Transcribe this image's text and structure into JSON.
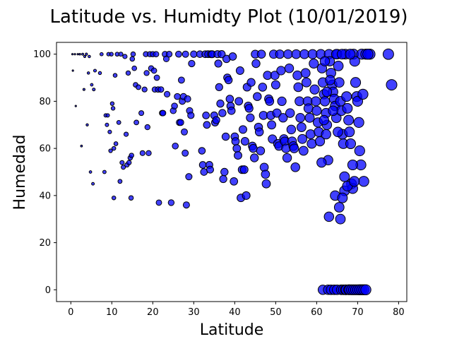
{
  "chart_data": {
    "type": "scatter",
    "title": "Latitude vs. Humidty Plot (10/01/2019)",
    "xlabel": "Latitude",
    "ylabel": "Humedad",
    "xlim": [
      -3.5,
      82
    ],
    "ylim": [
      -5,
      105
    ],
    "xticks": [
      0,
      10,
      20,
      30,
      40,
      50,
      60,
      70,
      80
    ],
    "yticks": [
      0,
      20,
      40,
      60,
      80,
      100
    ],
    "grid": false,
    "marker_color": "#0000ff",
    "marker_edge_color": "#000000",
    "marker_alpha": 0.75,
    "marker_size_encodes": "Latitude",
    "points": [
      [
        0.4,
        100
      ],
      [
        0.5,
        93
      ],
      [
        1.0,
        100
      ],
      [
        1.2,
        78
      ],
      [
        1.7,
        100
      ],
      [
        2.2,
        100
      ],
      [
        2.6,
        61
      ],
      [
        2.9,
        100
      ],
      [
        3.2,
        85
      ],
      [
        3.4,
        99
      ],
      [
        3.8,
        100
      ],
      [
        4.0,
        70
      ],
      [
        4.3,
        92
      ],
      [
        4.5,
        99
      ],
      [
        4.8,
        50
      ],
      [
        5.1,
        87
      ],
      [
        5.4,
        45
      ],
      [
        5.6,
        85
      ],
      [
        5.9,
        93
      ],
      [
        7.1,
        92
      ],
      [
        7.5,
        100
      ],
      [
        8.2,
        50
      ],
      [
        8.5,
        74
      ],
      [
        8.8,
        70
      ],
      [
        9.0,
        74
      ],
      [
        9.2,
        100
      ],
      [
        9.5,
        67
      ],
      [
        9.7,
        59
      ],
      [
        9.9,
        100
      ],
      [
        10.1,
        79
      ],
      [
        10.3,
        77
      ],
      [
        10.5,
        60
      ],
      [
        10.5,
        39
      ],
      [
        10.8,
        91
      ],
      [
        11.0,
        62
      ],
      [
        11.3,
        100
      ],
      [
        11.7,
        71
      ],
      [
        12.0,
        46
      ],
      [
        12.2,
        100
      ],
      [
        12.5,
        54
      ],
      [
        12.8,
        52
      ],
      [
        13.2,
        99
      ],
      [
        13.5,
        66
      ],
      [
        13.7,
        53
      ],
      [
        14.0,
        92
      ],
      [
        14.2,
        54
      ],
      [
        14.5,
        56
      ],
      [
        14.7,
        39
      ],
      [
        14.8,
        57
      ],
      [
        15.0,
        98
      ],
      [
        15.2,
        100
      ],
      [
        15.5,
        94
      ],
      [
        15.8,
        87
      ],
      [
        16.0,
        71
      ],
      [
        16.5,
        86
      ],
      [
        17.2,
        75
      ],
      [
        17.5,
        58
      ],
      [
        18.0,
        85
      ],
      [
        18.3,
        100
      ],
      [
        18.5,
        92
      ],
      [
        18.7,
        69
      ],
      [
        19.0,
        58
      ],
      [
        19.3,
        100
      ],
      [
        19.6,
        94
      ],
      [
        20.0,
        100
      ],
      [
        20.3,
        93
      ],
      [
        20.5,
        85
      ],
      [
        20.8,
        100
      ],
      [
        21.0,
        90
      ],
      [
        21.3,
        85
      ],
      [
        21.5,
        37
      ],
      [
        22.0,
        85
      ],
      [
        22.3,
        75
      ],
      [
        22.5,
        75
      ],
      [
        23.0,
        100
      ],
      [
        23.3,
        98
      ],
      [
        23.5,
        83
      ],
      [
        24.0,
        100
      ],
      [
        24.5,
        37
      ],
      [
        25.0,
        76
      ],
      [
        25.3,
        78
      ],
      [
        25.5,
        61
      ],
      [
        26.0,
        82
      ],
      [
        26.3,
        100
      ],
      [
        26.5,
        71
      ],
      [
        26.8,
        71
      ],
      [
        27.0,
        89
      ],
      [
        27.2,
        80
      ],
      [
        27.5,
        82
      ],
      [
        27.7,
        67
      ],
      [
        27.9,
        58
      ],
      [
        28.0,
        100
      ],
      [
        28.2,
        36
      ],
      [
        28.5,
        81
      ],
      [
        28.8,
        48
      ],
      [
        29.0,
        76
      ],
      [
        29.3,
        74
      ],
      [
        29.5,
        96
      ],
      [
        30.0,
        100
      ],
      [
        31.5,
        100
      ],
      [
        32.0,
        59
      ],
      [
        32.2,
        53
      ],
      [
        32.5,
        50
      ],
      [
        32.8,
        100
      ],
      [
        33.0,
        74
      ],
      [
        33.2,
        70
      ],
      [
        33.5,
        100
      ],
      [
        33.8,
        53
      ],
      [
        34.0,
        51
      ],
      [
        34.2,
        100
      ],
      [
        34.5,
        100
      ],
      [
        35.0,
        74
      ],
      [
        35.2,
        71
      ],
      [
        35.5,
        72
      ],
      [
        35.8,
        100
      ],
      [
        36.0,
        96
      ],
      [
        36.2,
        86
      ],
      [
        36.5,
        79
      ],
      [
        36.8,
        100
      ],
      [
        37.0,
        75
      ],
      [
        37.2,
        47
      ],
      [
        37.5,
        50
      ],
      [
        37.8,
        65
      ],
      [
        38.0,
        98
      ],
      [
        38.2,
        90
      ],
      [
        38.5,
        89
      ],
      [
        38.8,
        81
      ],
      [
        39.0,
        78
      ],
      [
        39.2,
        76
      ],
      [
        39.5,
        99
      ],
      [
        39.8,
        46
      ],
      [
        40.0,
        65
      ],
      [
        40.2,
        63
      ],
      [
        40.5,
        60
      ],
      [
        40.8,
        57
      ],
      [
        41.0,
        80
      ],
      [
        41.3,
        93
      ],
      [
        41.5,
        39
      ],
      [
        41.8,
        51
      ],
      [
        42.0,
        68
      ],
      [
        42.3,
        51
      ],
      [
        42.5,
        63
      ],
      [
        42.8,
        40
      ],
      [
        43.0,
        86
      ],
      [
        43.3,
        78
      ],
      [
        43.5,
        77
      ],
      [
        43.8,
        73
      ],
      [
        44.0,
        88
      ],
      [
        44.3,
        61
      ],
      [
        44.5,
        60
      ],
      [
        44.8,
        56
      ],
      [
        45.0,
        100
      ],
      [
        45.2,
        96
      ],
      [
        45.5,
        82
      ],
      [
        45.8,
        69
      ],
      [
        46.0,
        67
      ],
      [
        46.3,
        59
      ],
      [
        46.5,
        100
      ],
      [
        46.8,
        86
      ],
      [
        47.0,
        74
      ],
      [
        47.2,
        52
      ],
      [
        47.5,
        49
      ],
      [
        47.7,
        45
      ],
      [
        48.0,
        91
      ],
      [
        48.3,
        81
      ],
      [
        48.5,
        80
      ],
      [
        48.8,
        74
      ],
      [
        49.0,
        70
      ],
      [
        49.2,
        64
      ],
      [
        49.5,
        100
      ],
      [
        49.8,
        91
      ],
      [
        50.0,
        87
      ],
      [
        50.3,
        75
      ],
      [
        50.5,
        62
      ],
      [
        50.8,
        61
      ],
      [
        51.0,
        100
      ],
      [
        51.3,
        93
      ],
      [
        51.5,
        80
      ],
      [
        51.8,
        73
      ],
      [
        52.0,
        64
      ],
      [
        52.2,
        63
      ],
      [
        52.5,
        60
      ],
      [
        52.8,
        56
      ],
      [
        53.0,
        100
      ],
      [
        53.3,
        94
      ],
      [
        53.5,
        75
      ],
      [
        53.8,
        68
      ],
      [
        54.0,
        63
      ],
      [
        54.3,
        61
      ],
      [
        54.5,
        60
      ],
      [
        54.8,
        52
      ],
      [
        55.0,
        100
      ],
      [
        55.3,
        91
      ],
      [
        55.5,
        86
      ],
      [
        55.8,
        80
      ],
      [
        56.0,
        73
      ],
      [
        56.3,
        69
      ],
      [
        56.5,
        64
      ],
      [
        56.8,
        59
      ],
      [
        57.0,
        100
      ],
      [
        57.3,
        92
      ],
      [
        57.5,
        88
      ],
      [
        57.8,
        80
      ],
      [
        58.0,
        77
      ],
      [
        58.3,
        73
      ],
      [
        58.5,
        66
      ],
      [
        58.8,
        62
      ],
      [
        59.0,
        100
      ],
      [
        59.3,
        96
      ],
      [
        59.5,
        85
      ],
      [
        59.8,
        80
      ],
      [
        60.0,
        76
      ],
      [
        60.3,
        71
      ],
      [
        60.5,
        67
      ],
      [
        60.8,
        63
      ],
      [
        61.0,
        100
      ],
      [
        61.3,
        94
      ],
      [
        61.5,
        88
      ],
      [
        61.8,
        83
      ],
      [
        62.0,
        80
      ],
      [
        62.3,
        75
      ],
      [
        62.5,
        70
      ],
      [
        62.8,
        55
      ],
      [
        63.0,
        100
      ],
      [
        63.2,
        97
      ],
      [
        63.5,
        92
      ],
      [
        63.8,
        87
      ],
      [
        64.0,
        84
      ],
      [
        64.3,
        81
      ],
      [
        64.5,
        78
      ],
      [
        64.8,
        73
      ],
      [
        65.0,
        100
      ],
      [
        65.3,
        95
      ],
      [
        65.5,
        88
      ],
      [
        65.8,
        80
      ],
      [
        66.0,
        76
      ],
      [
        66.3,
        66
      ],
      [
        66.5,
        62
      ],
      [
        66.8,
        42
      ],
      [
        67.0,
        100
      ],
      [
        67.3,
        82
      ],
      [
        67.5,
        77
      ],
      [
        67.8,
        72
      ],
      [
        68.0,
        67
      ],
      [
        68.3,
        62
      ],
      [
        68.5,
        45
      ],
      [
        68.8,
        43
      ],
      [
        69.0,
        100
      ],
      [
        69.3,
        97
      ],
      [
        69.5,
        88
      ],
      [
        69.8,
        82
      ],
      [
        70.0,
        80
      ],
      [
        70.3,
        71
      ],
      [
        70.5,
        59
      ],
      [
        70.8,
        53
      ],
      [
        71.0,
        100
      ],
      [
        71.3,
        83
      ],
      [
        71.5,
        46
      ],
      [
        72.0,
        100
      ],
      [
        73.0,
        100
      ],
      [
        77.5,
        100
      ],
      [
        78.3,
        87
      ],
      [
        61.5,
        0
      ],
      [
        62.0,
        97
      ],
      [
        62.3,
        66
      ],
      [
        62.5,
        84
      ],
      [
        62.8,
        0
      ],
      [
        63.0,
        31
      ],
      [
        63.5,
        0
      ],
      [
        64.0,
        76
      ],
      [
        64.3,
        0
      ],
      [
        64.5,
        40
      ],
      [
        65.0,
        0
      ],
      [
        65.5,
        35
      ],
      [
        65.8,
        30
      ],
      [
        66.0,
        0
      ],
      [
        66.3,
        39
      ],
      [
        66.5,
        0
      ],
      [
        67.0,
        0
      ],
      [
        67.2,
        0
      ],
      [
        67.5,
        44
      ],
      [
        67.8,
        0
      ],
      [
        68.0,
        0
      ],
      [
        68.5,
        0
      ],
      [
        69.0,
        0
      ],
      [
        69.5,
        0
      ],
      [
        70.0,
        0
      ],
      [
        70.5,
        0
      ],
      [
        71.0,
        0
      ],
      [
        71.5,
        0
      ],
      [
        72.0,
        0
      ],
      [
        68.8,
        53
      ],
      [
        69.2,
        46
      ],
      [
        65.2,
        67
      ],
      [
        66.8,
        48
      ],
      [
        61.2,
        54
      ],
      [
        61.8,
        72
      ],
      [
        63.3,
        89
      ],
      [
        64.8,
        100
      ],
      [
        66.2,
        100
      ],
      [
        68.2,
        100
      ],
      [
        72.5,
        100
      ]
    ]
  }
}
